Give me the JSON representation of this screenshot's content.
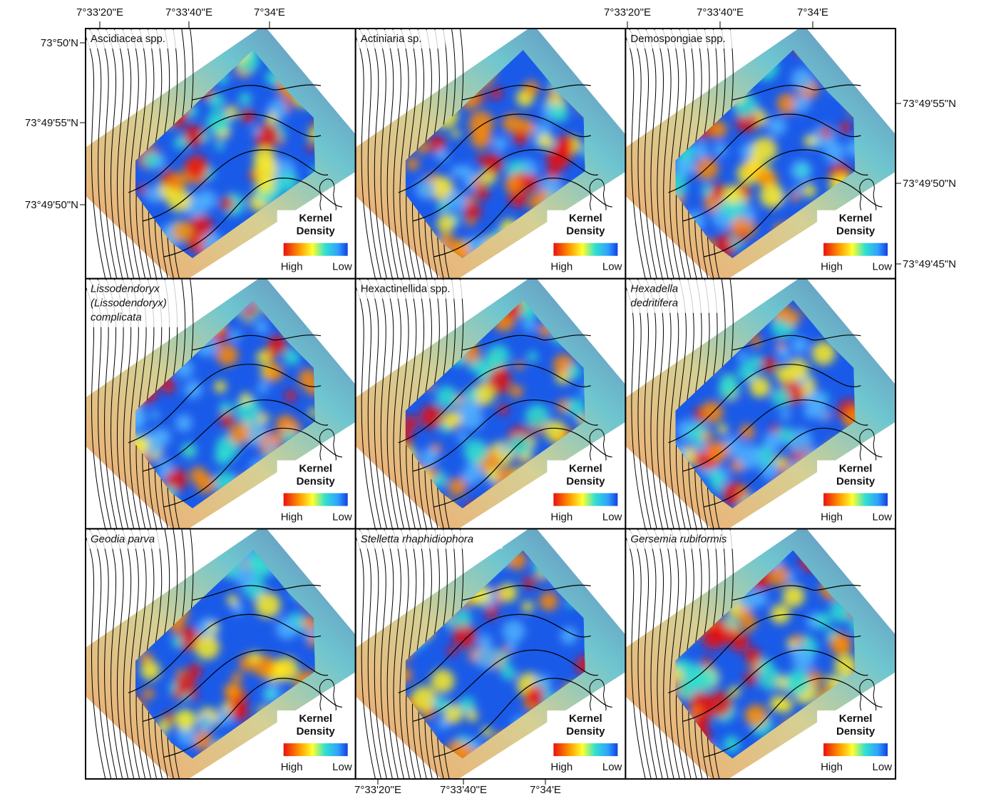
{
  "axes": {
    "top_left": [
      "7°33'20\"E",
      "7°33'40\"E",
      "7°34'E"
    ],
    "top_right": [
      "7°33'20\"E",
      "7°33'40\"E",
      "7°34'E"
    ],
    "bottom": [
      "7°33'20\"E",
      "7°33'40\"E",
      "7°34'E"
    ],
    "left": [
      "73°50'N",
      "73°49'55\"N",
      "73°49'50\"N"
    ],
    "right": [
      "73°49'55\"N",
      "73°49'50\"N",
      "73°49'45\"N"
    ]
  },
  "panels": [
    {
      "title": [
        "Ascidiacea spp."
      ],
      "italic": false
    },
    {
      "title": [
        "Actiniaria sp."
      ],
      "italic": false
    },
    {
      "title": [
        "Demospongiae spp."
      ],
      "italic": false
    },
    {
      "title": [
        "Lissodendoryx",
        "(Lissodendoryx)",
        "complicata"
      ],
      "italic": true
    },
    {
      "title": [
        "Hexactinellida spp."
      ],
      "italic": false
    },
    {
      "title": [
        "Hexadella",
        "dedritifera"
      ],
      "italic": true
    },
    {
      "title": [
        "Geodia parva"
      ],
      "italic": true
    },
    {
      "title": [
        "Stelletta rhaphidiophora"
      ],
      "italic": true
    },
    {
      "title": [
        "Gersemia rubiformis"
      ],
      "italic": true
    }
  ],
  "legend": {
    "title": [
      "Kernel",
      "Density"
    ],
    "high": "High",
    "low": "Low"
  }
}
